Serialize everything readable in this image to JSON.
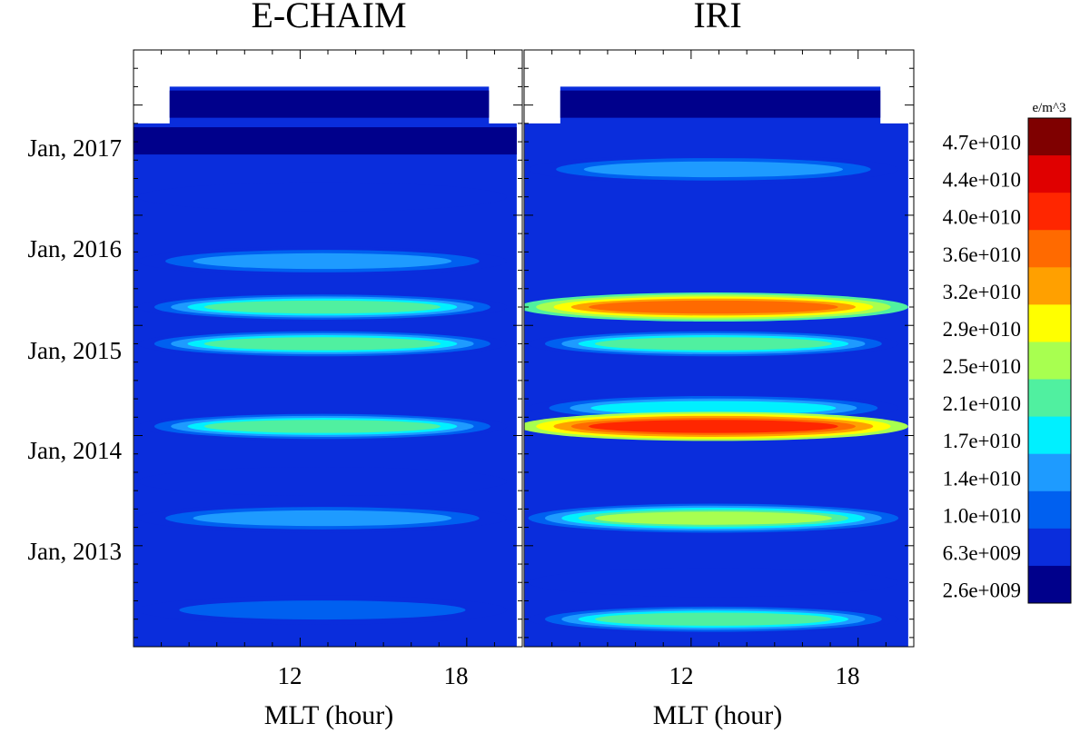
{
  "chart_data": [
    {
      "type": "heatmap",
      "title": "E-CHAIM",
      "xlabel": "MLT (hour)",
      "ylabel": "",
      "xlim": [
        6,
        20
      ],
      "ylim": [
        "2012-02",
        "2017-07"
      ],
      "xticks": [
        "12",
        "18"
      ],
      "yticks": [
        "Jan, 2013",
        "Jan, 2014",
        "Jan, 2015",
        "Jan, 2016",
        "Jan, 2017"
      ],
      "units": "e/m^3",
      "bands": [
        {
          "date": "2017-01",
          "level": 0
        },
        {
          "date": "2016-09",
          "level": 0
        },
        {
          "date": "2016-03",
          "level": 1
        },
        {
          "date": "2015-08",
          "level": 3
        },
        {
          "date": "2015-03",
          "level": 5
        },
        {
          "date": "2014-11",
          "level": 5
        },
        {
          "date": "2014-02",
          "level": 5
        },
        {
          "date": "2013-08",
          "level": 1
        },
        {
          "date": "2013-04",
          "level": 3
        },
        {
          "date": "2012-06",
          "level": 2
        }
      ]
    },
    {
      "type": "heatmap",
      "title": "IRI",
      "xlabel": "MLT (hour)",
      "ylabel": "",
      "xlim": [
        6,
        20
      ],
      "ylim": [
        "2012-02",
        "2017-07"
      ],
      "xticks": [
        "12",
        "18"
      ],
      "yticks": [],
      "units": "e/m^3",
      "bands": [
        {
          "date": "2017-01",
          "level": 0
        },
        {
          "date": "2016-06",
          "level": 3
        },
        {
          "date": "2015-03",
          "level": 9
        },
        {
          "date": "2014-11",
          "level": 5
        },
        {
          "date": "2014-04",
          "level": 4
        },
        {
          "date": "2014-02",
          "level": 10
        },
        {
          "date": "2013-04",
          "level": 6
        },
        {
          "date": "2012-09",
          "level": 1
        },
        {
          "date": "2012-05",
          "level": 5
        }
      ]
    }
  ],
  "colorbar": {
    "units": "e/m^3",
    "labels": [
      "4.7e+010",
      "4.4e+010",
      "4.0e+010",
      "3.6e+010",
      "3.2e+010",
      "2.9e+010",
      "2.5e+010",
      "2.1e+010",
      "1.7e+010",
      "1.4e+010",
      "1.0e+010",
      "6.3e+009",
      "2.6e+009"
    ],
    "colors": [
      "#7f0000",
      "#e00000",
      "#ff2600",
      "#ff6a00",
      "#ffa000",
      "#ffff00",
      "#a8ff50",
      "#50f0a0",
      "#00f0ff",
      "#1e9bff",
      "#0060f0",
      "#0a2ddc",
      "#00008b"
    ]
  }
}
